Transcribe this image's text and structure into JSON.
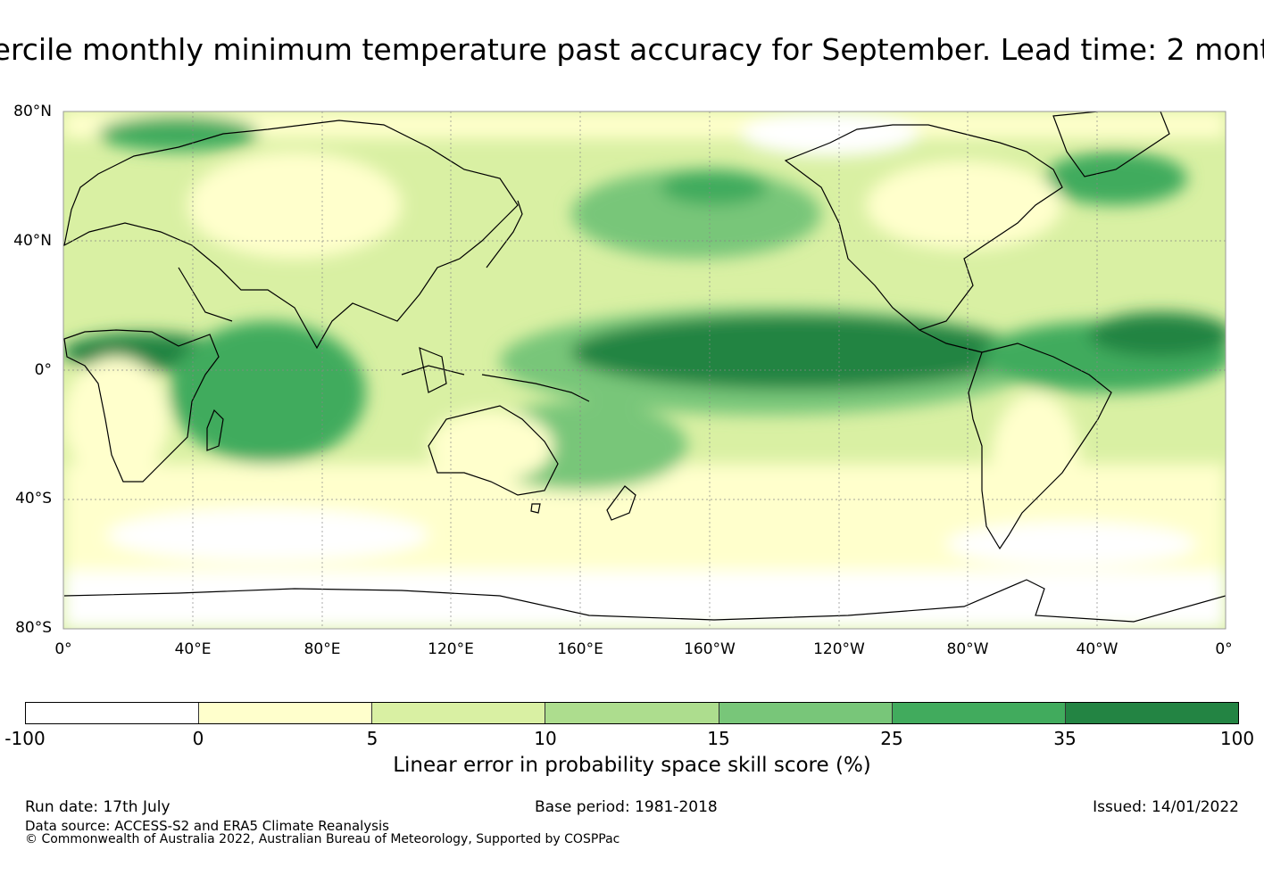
{
  "title": "ercile monthly minimum temperature past accuracy for September. Lead time: 2 mont",
  "map": {
    "lat_labels": [
      "80°N",
      "40°N",
      "0°",
      "40°S",
      "80°S"
    ],
    "lon_labels": [
      "0°",
      "40°E",
      "80°E",
      "120°E",
      "160°E",
      "160°W",
      "120°W",
      "80°W",
      "40°W",
      "0°"
    ],
    "land_outline_color": "#000000",
    "gridline_color": "#888888"
  },
  "colorbar": {
    "ticks": [
      "-100",
      "0",
      "5",
      "10",
      "15",
      "25",
      "35",
      "100"
    ],
    "colors": [
      "#ffffff",
      "#ffffcc",
      "#d9f0a3",
      "#addd8e",
      "#78c679",
      "#41ab5d",
      "#238443"
    ],
    "label": "Linear error in probability space skill score (%)"
  },
  "footer": {
    "run_date": "Run date: 17th July",
    "base_period": "Base period: 1981-2018",
    "issued": "Issued: 14/01/2022",
    "data_source": "Data source: ACCESS-S2 and ERA5 Climate Reanalysis",
    "copyright": "© Commonwealth of Australia 2022, Australian Bureau of Meteorology, Supported by COSPPac"
  }
}
